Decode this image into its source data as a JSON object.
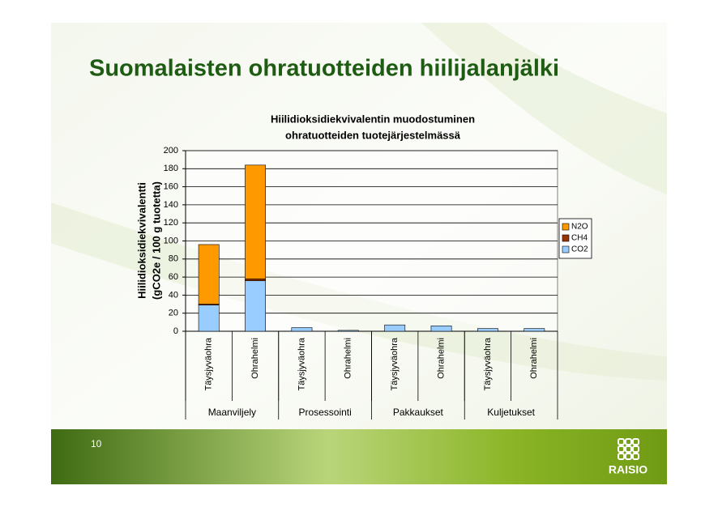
{
  "slide_title": "Suomalaisten ohratuotteiden hiilijalanjälki",
  "slide_number": "10",
  "logo": "RAISIO",
  "chart_data": {
    "type": "stacked_bar",
    "title": [
      "Hiilidioksidiekvivalentin muodostuminen",
      "ohratuotteiden tuotejärjestelmässä"
    ],
    "y_label": [
      "Hiilidioksidiekvivalentti",
      "(gCO2e / 100 g tuotetta)"
    ],
    "categories": [
      "Täysjyväohra",
      "Ohrahelmi",
      "Täysjyväohra",
      "Ohrahelmi",
      "Täysjyväohra",
      "Ohrahelmi",
      "Täysjyväohra",
      "Ohrahelmi"
    ],
    "groups": [
      "Maanviljely",
      "Prosessointi",
      "Pakkaukset",
      "Kuljetukset"
    ],
    "series": [
      {
        "name": "N2O",
        "color": "#ff9900",
        "values": [
          66,
          126,
          0,
          0,
          0,
          0,
          0,
          0
        ]
      },
      {
        "name": "CH4",
        "color": "#993300",
        "values": [
          1,
          2,
          0,
          0,
          0,
          0,
          0,
          0
        ]
      },
      {
        "name": "CO2",
        "color": "#99ccff",
        "values": [
          29,
          56,
          4,
          1,
          7,
          6,
          3,
          3
        ]
      }
    ],
    "ylim": [
      0,
      200
    ],
    "yticks": [
      0,
      20,
      40,
      60,
      80,
      100,
      120,
      140,
      160,
      180,
      200
    ],
    "grid": true,
    "legend": "right"
  }
}
